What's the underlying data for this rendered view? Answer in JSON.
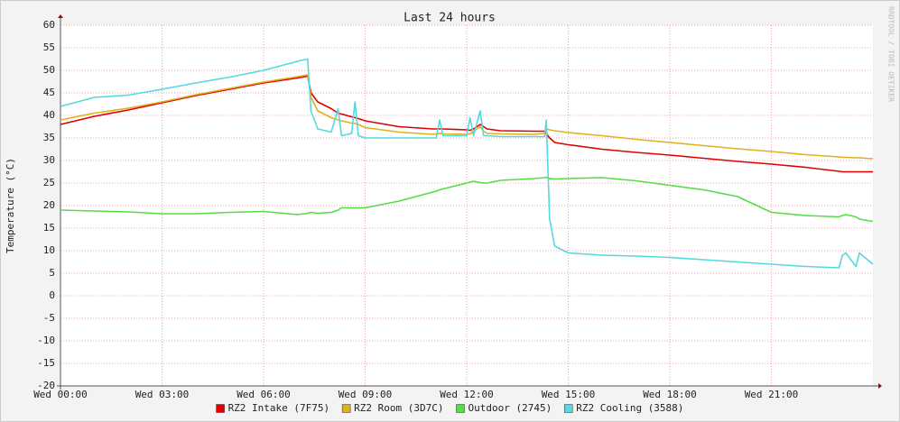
{
  "chart_data": {
    "type": "line",
    "title": "Last 24 hours",
    "y_label": "Temperature (°C)",
    "watermark": "RRDTOOL / TOBI OETIKER",
    "x": [
      0,
      1,
      2,
      3,
      4,
      5,
      6,
      7,
      7.3,
      7.4,
      7.6,
      8,
      8.2,
      8.3,
      8.6,
      8.7,
      8.8,
      9,
      10,
      11,
      11.1,
      11.2,
      11.3,
      12,
      12.1,
      12.2,
      12.4,
      12.5,
      12.6,
      13,
      14,
      14.3,
      14.35,
      14.45,
      14.6,
      15,
      16,
      17,
      18,
      19,
      20,
      21,
      22,
      23,
      23.1,
      23.2,
      23.5,
      23.6,
      24
    ],
    "xlim": [
      0,
      24
    ],
    "xticks": [
      {
        "value": 0,
        "label": "Wed 00:00"
      },
      {
        "value": 3,
        "label": "Wed 03:00"
      },
      {
        "value": 6,
        "label": "Wed 06:00"
      },
      {
        "value": 9,
        "label": "Wed 09:00"
      },
      {
        "value": 12,
        "label": "Wed 12:00"
      },
      {
        "value": 15,
        "label": "Wed 15:00"
      },
      {
        "value": 18,
        "label": "Wed 18:00"
      },
      {
        "value": 21,
        "label": "Wed 21:00"
      }
    ],
    "ylim": [
      -20,
      60
    ],
    "yticks": [
      -20,
      -15,
      -10,
      -5,
      0,
      5,
      10,
      15,
      20,
      25,
      30,
      35,
      40,
      45,
      50,
      55,
      60
    ],
    "grid": true,
    "series": [
      {
        "name": "RZ2 Intake (7F75)",
        "color": "#e00000",
        "values": [
          38,
          39.8,
          41.2,
          42.8,
          44.4,
          45.8,
          47.2,
          48.3,
          48.7,
          45,
          43,
          41.5,
          40.5,
          40.3,
          39.7,
          39.5,
          39.3,
          38.8,
          37.5,
          37,
          37,
          37,
          37,
          36.8,
          36.7,
          37,
          38,
          37.5,
          37,
          36.6,
          36.5,
          36.5,
          36,
          35,
          34,
          33.5,
          32.5,
          31.8,
          31.2,
          30.5,
          29.8,
          29.2,
          28.5,
          27.6,
          27.5,
          27.5,
          27.5,
          27.5,
          27.5
        ]
      },
      {
        "name": "RZ2 Room (3D7C)",
        "color": "#e0b020",
        "values": [
          39,
          40.5,
          41.6,
          43,
          44.6,
          46,
          47.4,
          48.6,
          49,
          44,
          41,
          39.5,
          39,
          38.8,
          38.3,
          38.2,
          38,
          37.3,
          36.3,
          35.8,
          35.9,
          36,
          35.9,
          35.8,
          35.9,
          36.5,
          37.5,
          36.5,
          36,
          35.9,
          35.8,
          36,
          37,
          36.8,
          36.6,
          36.2,
          35.5,
          34.7,
          34,
          33.3,
          32.6,
          32,
          31.3,
          30.8,
          30.7,
          30.7,
          30.6,
          30.6,
          30.4
        ]
      },
      {
        "name": "Outdoor (2745)",
        "color": "#55dd44",
        "values": [
          19,
          18.8,
          18.6,
          18.2,
          18.2,
          18.5,
          18.7,
          18,
          18.3,
          18.5,
          18.3,
          18.5,
          19,
          19.5,
          19.5,
          19.5,
          19.5,
          19.5,
          21,
          23,
          23.2,
          23.5,
          23.7,
          25,
          25.2,
          25.4,
          25.1,
          25,
          25,
          25.6,
          26,
          26.2,
          26.3,
          26,
          25.9,
          26,
          26.2,
          25.5,
          24.5,
          23.5,
          22,
          18.5,
          17.8,
          17.5,
          17.8,
          18,
          17.5,
          17,
          16.5
        ]
      },
      {
        "name": "RZ2 Cooling (3588)",
        "color": "#55d8e0",
        "values": [
          42,
          44,
          44.5,
          45.8,
          47.2,
          48.5,
          50,
          52,
          52.5,
          41,
          37,
          36.3,
          41.5,
          35.5,
          36,
          43,
          35.5,
          35,
          35,
          35,
          35,
          39,
          35.5,
          35.5,
          39.5,
          35.5,
          41,
          35.5,
          35.5,
          35.3,
          35.3,
          35.3,
          39,
          17,
          11,
          9.5,
          9,
          8.8,
          8.5,
          8,
          7.5,
          7,
          6.5,
          6.2,
          9,
          9.5,
          6.5,
          9.5,
          7
        ]
      }
    ],
    "legend": "bottom"
  }
}
